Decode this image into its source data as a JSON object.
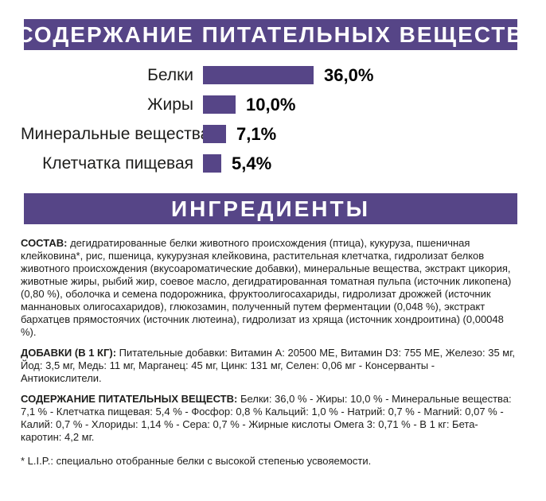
{
  "colors": {
    "brand_purple": "#564587",
    "text": "#1d1d1b"
  },
  "section_headers": {
    "nutrition": "СОДЕРЖАНИЕ ПИТАТЕЛЬНЫХ ВЕЩЕСТВ",
    "ingredients": "ИНГРЕДИЕНТЫ"
  },
  "chart_data": {
    "type": "bar",
    "orientation": "horizontal",
    "categories": [
      "Белки",
      "Жиры",
      "Минеральные вещества",
      "Клетчатка пищевая"
    ],
    "values": [
      36.0,
      10.0,
      7.1,
      5.4
    ],
    "value_labels": [
      "36,0%",
      "10,0%",
      "7,1%",
      "5,4%"
    ],
    "unit": "%",
    "xlim": [
      0,
      36
    ],
    "bar_color": "#564587",
    "grid": false,
    "legend": false
  },
  "paragraphs": {
    "composition": {
      "label": "СОСТАВ:",
      "text": "дегидратированные белки животного происхождения (птица), кукуруза, пшеничная клейковина*, рис, пшеница, кукурузная клейковина, растительная клетчатка, гидролизат белков животного происхождения (вкусоароматические добавки), минеральные вещества, экстракт цикория, животные жиры, рыбий жир, соевое масло, дегидратированная томатная пульпа (источник ликопена) (0,80 %), оболочка и семена подорожника, фруктоолигосахариды, гидролизат дрожжей (источник маннановых олигосахаридов), глюкозамин, полученный путем ферментации (0,048 %), экстракт бархатцев прямостоячих (источник лютеина), гидролизат из хряща (источник хондроитина) (0,00048 %)."
    },
    "additives": {
      "label": "ДОБАВКИ (В 1 КГ):",
      "text": "Питательные добавки: Витамин А: 20500 МЕ, Витамин D3: 755 МЕ, Железо: 35 мг, Йод: 3,5 мг, Медь: 11 мг, Марганец: 45 мг, Цинк: 131 мг, Селен: 0,06 мг - Консерванты - Антиокислители."
    },
    "analysis": {
      "label": "СОДЕРЖАНИЕ ПИТАТЕЛЬНЫХ ВЕЩЕСТВ:",
      "text": "Белки: 36,0 % - Жиры: 10,0 % - Минеральные вещества: 7,1 % - Клетчатка пищевая: 5,4 % - Фосфор: 0,8 % Кальций: 1,0 % - Натрий: 0,7 % - Магний: 0,07 % - Калий: 0,7 % - Хлориды: 1,14 % - Сера: 0,7 % - Жирные кислоты Омега 3: 0,71 % - В 1 кг: Бета-каротин: 4,2 мг."
    },
    "footnote": "* L.I.P.: специально отобранные белки с высокой степенью усвояемости."
  }
}
